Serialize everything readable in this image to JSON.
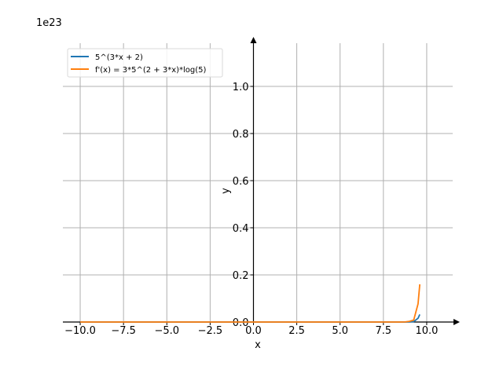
{
  "chart_data": {
    "type": "line",
    "scale_label": "1e23",
    "xlabel": "x",
    "ylabel": "y",
    "xlim": [
      -11.0,
      11.5
    ],
    "ylim": [
      0,
      1.2
    ],
    "x_ticks": [
      -10.0,
      -7.5,
      -5.0,
      -2.5,
      0.0,
      2.5,
      5.0,
      7.5,
      10.0
    ],
    "x_tick_labels": [
      "−10.0",
      "−7.5",
      "−5.0",
      "−2.5",
      "0.0",
      "2.5",
      "5.0",
      "7.5",
      "10.0"
    ],
    "y_ticks": [
      0.0,
      0.2,
      0.4,
      0.6,
      0.8,
      1.0
    ],
    "y_tick_labels": [
      "0.0",
      "0.2",
      "0.4",
      "0.6",
      "0.8",
      "1.0"
    ],
    "grid": true,
    "legend_position": "top-left",
    "y_multiplier": 1e+23,
    "series": [
      {
        "name": "5^(3*x + 2)",
        "color": "#1f77b4",
        "x": [
          -10,
          -5,
          0,
          5,
          8,
          8.5,
          8.75,
          9,
          9.25,
          9.5,
          9.6
        ],
        "y": [
          0,
          0,
          0,
          0,
          8e-07,
          2.2e-05,
          0.00011,
          0.00059,
          0.0017,
          0.016,
          0.032
        ]
      },
      {
        "name": "f'(x) = 3*5^(2 + 3*x)*log(5)",
        "color": "#ff7f0e",
        "x": [
          -10,
          -5,
          0,
          5,
          8,
          8.5,
          8.75,
          9,
          9.25,
          9.5,
          9.6
        ],
        "y": [
          0,
          0,
          0,
          0,
          4e-06,
          0.000106,
          0.00053,
          0.0028,
          0.0082,
          0.077,
          0.16
        ]
      }
    ]
  }
}
